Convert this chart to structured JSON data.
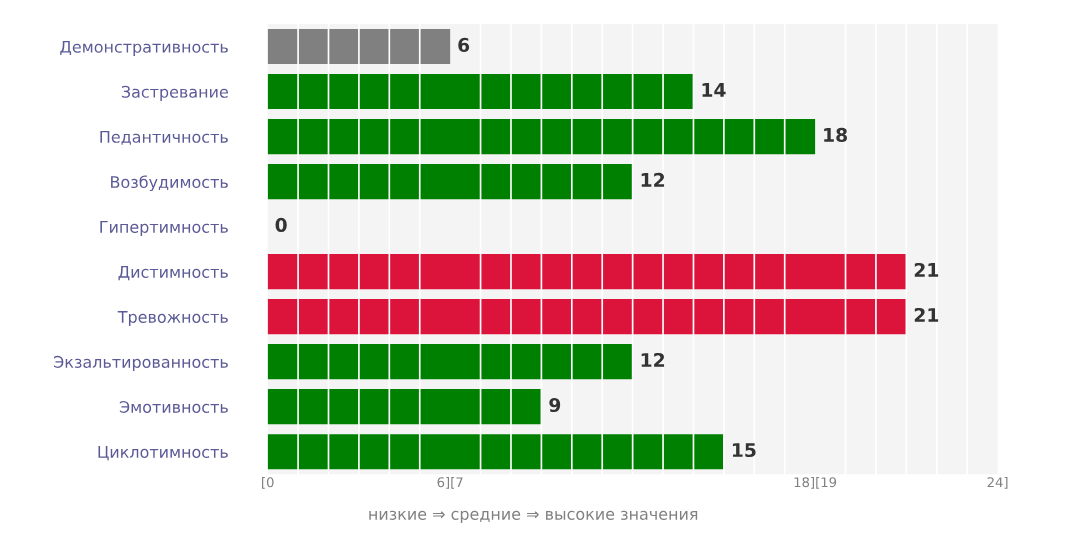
{
  "chart_data": {
    "type": "bar",
    "orientation": "horizontal",
    "categories": [
      "Демонстративность",
      "Застревание",
      "Педантичность",
      "Возбудимость",
      "Гипертимность",
      "Дистимность",
      "Тревожность",
      "Экзальтированность",
      "Эмотивность",
      "Циклотимность"
    ],
    "values": [
      6,
      14,
      18,
      12,
      0,
      21,
      21,
      12,
      9,
      15
    ],
    "colors": [
      "#808080",
      "#008000",
      "#008000",
      "#008000",
      "#008000",
      "#dc143c",
      "#dc143c",
      "#008000",
      "#008000",
      "#008000"
    ],
    "xlim": [
      0,
      24
    ],
    "xticks": [
      {
        "value": 0,
        "label": "[0"
      },
      {
        "value": 6,
        "label": "6][7"
      },
      {
        "value": 18,
        "label": "18][19"
      },
      {
        "value": 24,
        "label": "24]"
      }
    ],
    "grid": "x",
    "data_labels": true,
    "annotations": [
      "низкие ⇒ средние ⇒ высокие значения"
    ]
  }
}
